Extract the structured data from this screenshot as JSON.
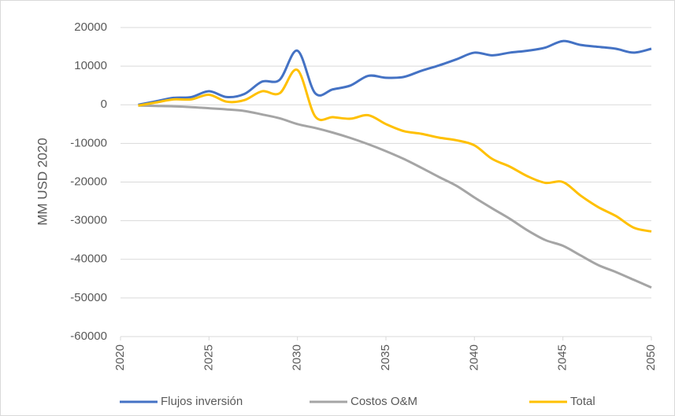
{
  "chart_data": {
    "type": "line",
    "y_label": "MM USD 2020",
    "x": [
      2021,
      2022,
      2023,
      2024,
      2025,
      2026,
      2027,
      2028,
      2029,
      2030,
      2031,
      2032,
      2033,
      2034,
      2035,
      2036,
      2037,
      2038,
      2039,
      2040,
      2041,
      2042,
      2043,
      2044,
      2045,
      2046,
      2047,
      2048,
      2049,
      2050
    ],
    "series": [
      {
        "name": "Flujos inversión",
        "color": "#4472c4",
        "values": [
          0,
          900,
          1800,
          2000,
          3500,
          2000,
          2800,
          6000,
          6500,
          14000,
          3000,
          4000,
          5000,
          7500,
          7000,
          7200,
          8800,
          10200,
          11800,
          13500,
          12800,
          13500,
          14000,
          14800,
          16500,
          15500,
          15000,
          14500,
          13500,
          14500
        ]
      },
      {
        "name": "Costos O&M",
        "color": "#a5a5a5",
        "values": [
          -200,
          -300,
          -400,
          -600,
          -900,
          -1200,
          -1600,
          -2500,
          -3500,
          -5000,
          -6000,
          -7200,
          -8600,
          -10200,
          -12000,
          -14000,
          -16300,
          -18700,
          -21000,
          -24000,
          -26800,
          -29500,
          -32500,
          -35000,
          -36500,
          -39000,
          -41500,
          -43300,
          -45300,
          -47300
        ]
      },
      {
        "name": "Total",
        "color": "#ffc000",
        "values": [
          -200,
          600,
          1400,
          1400,
          2600,
          800,
          1200,
          3500,
          3000,
          9000,
          -3000,
          -3200,
          -3600,
          -2700,
          -5000,
          -6800,
          -7500,
          -8500,
          -9200,
          -10500,
          -14000,
          -16000,
          -18500,
          -20200,
          -20000,
          -23500,
          -26500,
          -28800,
          -31800,
          -32800
        ]
      }
    ],
    "xlim": [
      2020,
      2050
    ],
    "xticks": [
      2020,
      2025,
      2030,
      2035,
      2040,
      2045,
      2050
    ],
    "ylim": [
      -60000,
      20000
    ],
    "yticks": [
      -60000,
      -50000,
      -40000,
      -30000,
      -20000,
      -10000,
      0,
      10000,
      20000
    ],
    "grid": true,
    "legend": "bottom"
  }
}
